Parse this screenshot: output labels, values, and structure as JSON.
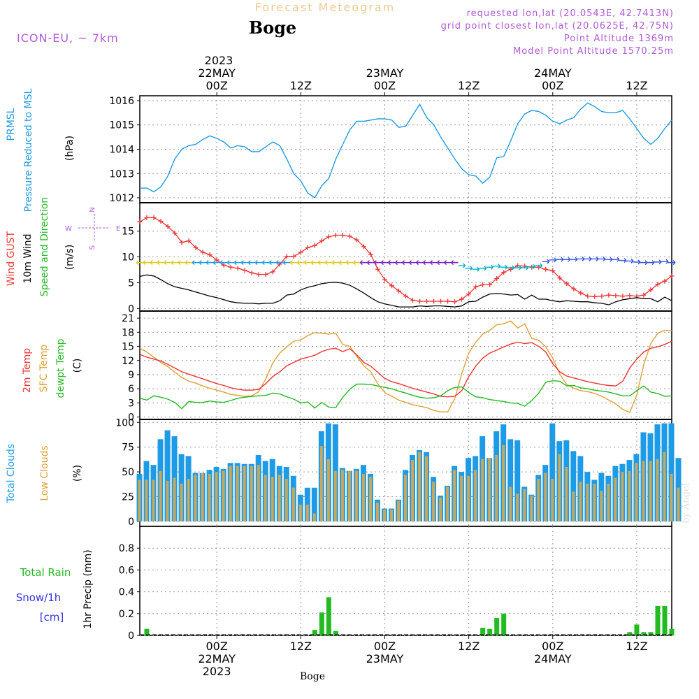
{
  "header": {
    "forecast_title": "Forecast Meteogram",
    "location": "Boge",
    "model": "ICON-EU, ~ 7km",
    "requested": "requested lon,lat (20.0543E, 42.7413N)",
    "grid_point": "grid point closest lon,lat (20.0625E, 42.75N)",
    "point_altitude": "Point Altitude 1369m",
    "model_altitude": "Model Point Altitude 1570.25m",
    "footer_location": "Boge",
    "watermark": "by Angel"
  },
  "colors": {
    "pressure": "#1e9be6",
    "gust": "#ee3333",
    "wind10m": "#000000",
    "temp2m": "#ee3333",
    "sfc_temp": "#dda030",
    "dewpt": "#22bb22",
    "total_cloud": "#1e9be6",
    "low_cloud": "#c8a85a",
    "rain": "#22bb22",
    "snow": "#3333dd",
    "meta_text": "#b05ad8",
    "title_text": "#f0c890"
  },
  "time_axis": {
    "top_year": "2023",
    "top_labels": [
      {
        "t": 0,
        "lines": [
          "22MAY",
          "00Z"
        ]
      },
      {
        "t": 12,
        "lines": [
          "12Z"
        ]
      },
      {
        "t": 24,
        "lines": [
          "23MAY",
          "00Z"
        ]
      },
      {
        "t": 36,
        "lines": [
          "12Z"
        ]
      },
      {
        "t": 48,
        "lines": [
          "24MAY",
          "00Z"
        ]
      },
      {
        "t": 60,
        "lines": [
          "12Z"
        ]
      }
    ],
    "bottom_labels": [
      {
        "t": 0,
        "lines": [
          "00Z",
          "22MAY",
          "2023"
        ]
      },
      {
        "t": 12,
        "lines": [
          "12Z"
        ]
      },
      {
        "t": 24,
        "lines": [
          "00Z",
          "23MAY"
        ]
      },
      {
        "t": 36,
        "lines": [
          "12Z"
        ]
      },
      {
        "t": 48,
        "lines": [
          "00Z",
          "24MAY"
        ]
      },
      {
        "t": 60,
        "lines": [
          "12Z"
        ]
      }
    ],
    "t_range_hours": [
      -11,
      65
    ]
  },
  "chart_data": [
    {
      "type": "line",
      "title": "PRMSL Pressure Reduced to MSL",
      "ylabel_lines": [
        "PRMSL",
        "Pressure Reduced to MSL"
      ],
      "unit": "(hPa)",
      "ylim": [
        1011.8,
        1016.2
      ],
      "yticks": [
        1012,
        1013,
        1014,
        1015,
        1016
      ],
      "series": [
        {
          "name": "Pressure",
          "values": [
            1012.4,
            1012.4,
            1012.25,
            1012.45,
            1012.9,
            1013.6,
            1014.0,
            1014.15,
            1014.2,
            1014.4,
            1014.55,
            1014.45,
            1014.3,
            1014.05,
            1014.15,
            1014.1,
            1013.9,
            1013.9,
            1014.1,
            1014.3,
            1014.15,
            1013.6,
            1013.0,
            1012.7,
            1012.2,
            1012.0,
            1012.5,
            1012.8,
            1013.6,
            1014.2,
            1014.8,
            1015.15,
            1015.15,
            1015.2,
            1015.25,
            1015.25,
            1015.2,
            1014.9,
            1014.95,
            1015.4,
            1015.85,
            1015.3,
            1015.0,
            1014.5,
            1014.05,
            1013.6,
            1013.2,
            1012.95,
            1012.9,
            1012.6,
            1012.85,
            1013.65,
            1013.7,
            1014.35,
            1015.05,
            1015.45,
            1015.6,
            1015.55,
            1015.4,
            1015.15,
            1015.05,
            1015.2,
            1015.3,
            1015.65,
            1015.9,
            1015.75,
            1015.55,
            1015.5,
            1015.5,
            1015.6,
            1015.25,
            1014.85,
            1014.45,
            1014.2,
            1014.45,
            1014.85,
            1015.2
          ]
        }
      ]
    },
    {
      "type": "line",
      "title": "Wind GUST / 10m Wind Speed and Direction",
      "ylabel_lines": [
        "Wind GUST",
        "10m Wind",
        "Speed and Direction"
      ],
      "unit": "(m/s)",
      "compass": [
        "N",
        "E",
        "S",
        "W"
      ],
      "ylim": [
        -0.5,
        20.5
      ],
      "yticks": [
        0,
        5,
        10,
        15
      ],
      "series": [
        {
          "name": "Wind GUST",
          "values": [
            16.8,
            17.6,
            17.6,
            16.9,
            15.9,
            14.6,
            12.8,
            13.1,
            11.8,
            10.9,
            10.4,
            9.4,
            8.4,
            8.0,
            7.8,
            7.4,
            6.9,
            6.6,
            6.6,
            7.1,
            8.6,
            10.1,
            10.1,
            10.9,
            11.8,
            12.2,
            13.1,
            13.9,
            14.2,
            14.2,
            14.0,
            13.3,
            12.0,
            10.5,
            7.6,
            5.6,
            4.4,
            3.4,
            2.4,
            1.6,
            1.4,
            1.4,
            1.4,
            1.4,
            1.4,
            1.3,
            1.8,
            2.8,
            4.2,
            4.6,
            4.6,
            5.8,
            7.0,
            7.6,
            8.3,
            8.2,
            8.0,
            8.0,
            7.6,
            7.3,
            5.9,
            4.8,
            3.8,
            3.0,
            2.4,
            2.3,
            2.4,
            2.6,
            2.5,
            2.4,
            2.5,
            2.4,
            2.6,
            3.6,
            4.7,
            5.3,
            6.3
          ]
        },
        {
          "name": "10m Wind",
          "values": [
            6.2,
            6.5,
            6.3,
            5.6,
            4.8,
            4.2,
            3.9,
            3.6,
            3.2,
            2.8,
            2.4,
            2.1,
            1.7,
            1.3,
            1.1,
            1.0,
            1.0,
            0.9,
            1.0,
            1.0,
            1.5,
            2.6,
            2.8,
            3.6,
            4.1,
            4.4,
            4.8,
            5.0,
            5.1,
            4.9,
            4.5,
            3.8,
            3.0,
            2.1,
            1.3,
            0.9,
            0.6,
            0.3,
            0.3,
            0.3,
            0.5,
            0.4,
            0.5,
            0.5,
            0.4,
            0.3,
            0.5,
            1.3,
            1.4,
            2.2,
            2.8,
            2.9,
            2.8,
            2.6,
            2.7,
            1.8,
            2.6,
            1.8,
            1.8,
            1.5,
            1.3,
            1.5,
            1.4,
            1.3,
            1.3,
            1.1,
            1.0,
            0.7,
            1.3,
            1.7,
            1.9,
            2.1,
            1.9,
            1.9,
            1.3,
            2.2,
            1.5
          ]
        },
        {
          "name": "Direction barbs (speed)",
          "values": [
            8.9,
            8.9,
            8.9,
            8.9,
            8.9,
            8.9,
            8.9,
            8.9,
            8.9,
            8.9,
            8.9,
            8.9,
            8.9,
            8.9,
            8.9,
            8.9,
            8.9,
            8.9,
            8.9,
            8.9,
            8.9,
            8.9,
            8.9,
            8.9,
            8.9,
            8.9,
            8.9,
            8.9,
            8.9,
            8.9,
            8.9,
            8.9,
            8.9,
            8.9,
            8.9,
            8.9,
            8.9,
            8.9,
            8.9,
            8.9,
            8.9,
            8.9,
            8.9,
            8.9,
            8.9,
            8.9,
            8.3,
            7.8,
            7.6,
            7.8,
            8.0,
            8.2,
            8.0,
            7.9,
            7.9,
            7.9,
            8.1,
            8.3,
            9.1,
            9.4,
            9.5,
            9.5,
            9.5,
            9.6,
            9.6,
            9.6,
            9.6,
            9.5,
            9.5,
            9.3,
            9.2,
            9.0,
            8.9,
            8.9,
            9.0,
            9.1,
            8.9
          ]
        }
      ]
    },
    {
      "type": "line",
      "title": "2m Temp / SFC Temp / dewpt Temp",
      "ylabel_lines": [
        "2m Temp",
        "SFC Temp",
        "dewpt Temp"
      ],
      "unit": "(C)",
      "ylim": [
        -0.5,
        22.5
      ],
      "yticks": [
        0,
        3,
        6,
        9,
        12,
        15,
        18,
        21
      ],
      "series": [
        {
          "name": "2m Temp",
          "values": [
            13.3,
            12.7,
            12.3,
            11.9,
            11.2,
            10.4,
            9.6,
            9.1,
            8.6,
            8.1,
            7.6,
            7.1,
            6.7,
            6.2,
            5.9,
            5.7,
            5.7,
            5.9,
            7.1,
            8.6,
            9.6,
            10.9,
            11.6,
            12.3,
            12.7,
            13.1,
            13.9,
            14.4,
            14.6,
            13.9,
            14.5,
            13.2,
            11.6,
            10.8,
            9.5,
            8.2,
            7.5,
            7.1,
            6.6,
            6.1,
            5.7,
            5.3,
            4.9,
            4.4,
            4.3,
            4.4,
            5.6,
            8.6,
            10.8,
            12.5,
            13.6,
            14.2,
            14.9,
            15.5,
            15.9,
            15.6,
            15.8,
            15.0,
            13.8,
            11.3,
            9.6,
            8.7,
            8.3,
            7.9,
            7.5,
            7.2,
            6.9,
            6.7,
            6.6,
            7.6,
            10.4,
            12.3,
            13.8,
            14.6,
            14.9,
            15.4,
            16.1
          ]
        },
        {
          "name": "SFC Temp",
          "values": [
            14.6,
            13.8,
            12.7,
            11.6,
            10.7,
            9.5,
            8.4,
            7.6,
            7.2,
            6.6,
            6.1,
            5.7,
            5.3,
            4.8,
            4.6,
            4.4,
            4.5,
            5.4,
            8.1,
            11.5,
            13.6,
            14.9,
            16.1,
            16.4,
            17.3,
            17.9,
            17.8,
            17.6,
            17.8,
            15.4,
            15.0,
            12.9,
            10.9,
            9.6,
            7.1,
            5.2,
            4.4,
            3.6,
            3.1,
            2.6,
            2.3,
            2.0,
            1.4,
            1.1,
            1.1,
            3.9,
            9.2,
            13.6,
            15.9,
            17.6,
            18.4,
            19.6,
            19.8,
            20.4,
            18.9,
            19.8,
            16.7,
            16.3,
            14.9,
            12.5,
            9.1,
            6.9,
            6.1,
            5.6,
            5.4,
            5.0,
            4.4,
            3.6,
            2.8,
            1.6,
            1.0,
            4.6,
            11.1,
            15.6,
            17.8,
            18.4,
            18.3
          ]
        },
        {
          "name": "dewpt Temp",
          "values": [
            4.0,
            3.6,
            4.5,
            4.2,
            3.8,
            3.1,
            1.8,
            3.3,
            3.1,
            3.1,
            3.4,
            3.2,
            3.1,
            3.5,
            4.0,
            4.2,
            4.4,
            4.5,
            4.6,
            5.1,
            4.9,
            4.3,
            3.8,
            3.0,
            3.2,
            1.9,
            3.1,
            2.1,
            2.0,
            4.2,
            5.9,
            7.0,
            7.0,
            6.9,
            6.6,
            6.3,
            6.0,
            5.5,
            5.1,
            4.6,
            4.2,
            4.0,
            4.1,
            4.5,
            5.6,
            6.3,
            6.4,
            5.2,
            4.3,
            4.1,
            3.7,
            3.5,
            3.3,
            3.0,
            2.9,
            2.3,
            3.5,
            5.1,
            7.4,
            7.7,
            7.6,
            6.6,
            6.7,
            6.2,
            6.0,
            5.7,
            5.5,
            5.3,
            4.9,
            4.5,
            4.5,
            5.6,
            6.6,
            5.3,
            5.0,
            4.4,
            4.5
          ]
        }
      ]
    },
    {
      "type": "bar",
      "title": "Total Clouds / Low Clouds",
      "ylabel_lines": [
        "Total Clouds",
        "Low Clouds"
      ],
      "unit": "(%)",
      "ylim": [
        -5,
        103
      ],
      "yticks": [
        0,
        25,
        50,
        75,
        100
      ],
      "series": [
        {
          "name": "Total Clouds",
          "values": [
            48,
            61,
            57,
            83,
            92,
            86,
            68,
            66,
            49,
            49,
            52,
            55,
            53,
            59,
            59,
            58,
            58,
            67,
            61,
            63,
            56,
            55,
            46,
            27,
            34,
            34,
            91,
            99,
            98,
            54,
            51,
            53,
            57,
            48,
            22,
            13,
            13,
            22,
            52,
            67,
            72,
            70,
            45,
            26,
            36,
            56,
            50,
            64,
            66,
            86,
            64,
            91,
            98,
            83,
            82,
            35,
            27,
            47,
            57,
            99,
            81,
            82,
            71,
            66,
            50,
            42,
            49,
            46,
            56,
            58,
            62,
            68,
            90,
            89,
            98,
            99,
            99,
            64
          ]
        },
        {
          "name": "Low Clouds",
          "values": [
            42,
            42,
            42,
            51,
            41,
            44,
            38,
            43,
            47,
            49,
            48,
            50,
            51,
            56,
            56,
            56,
            56,
            57,
            47,
            45,
            47,
            43,
            34,
            17,
            17,
            8,
            76,
            63,
            51,
            52,
            51,
            51,
            48,
            45,
            19,
            12,
            12,
            21,
            47,
            62,
            70,
            66,
            40,
            24,
            35,
            52,
            46,
            46,
            52,
            63,
            64,
            67,
            77,
            35,
            28,
            33,
            26,
            43,
            49,
            43,
            68,
            55,
            30,
            40,
            38,
            38,
            31,
            38,
            44,
            50,
            51,
            59,
            61,
            61,
            63,
            70,
            48,
            34
          ]
        }
      ]
    },
    {
      "type": "bar",
      "title": "1hr Precip",
      "ylabel_lines": [
        "1hr Precip (mm)"
      ],
      "legend": [
        "Total  Rain",
        "Snow/1h",
        "[cm]"
      ],
      "ylim": [
        0,
        1.0
      ],
      "yticks": [
        0,
        0.2,
        0.4,
        0.6,
        0.8
      ],
      "series": [
        {
          "name": "Total Rain",
          "values": [
            0,
            0.06,
            0,
            0,
            0,
            0,
            0,
            0,
            0,
            0,
            0,
            0,
            0,
            0,
            0,
            0,
            0,
            0,
            0,
            0,
            0,
            0,
            0,
            0,
            0,
            0.05,
            0.21,
            0.35,
            0.04,
            0,
            0,
            0,
            0,
            0,
            0,
            0,
            0,
            0,
            0,
            0,
            0,
            0,
            0,
            0,
            0,
            0,
            0,
            0,
            0,
            0.07,
            0.06,
            0.16,
            0.2,
            0,
            0,
            0,
            0,
            0,
            0,
            0,
            0,
            0,
            0,
            0,
            0,
            0,
            0,
            0,
            0,
            0,
            0.03,
            0.1,
            0.03,
            0.03,
            0.27,
            0.27,
            0.06
          ]
        }
      ]
    }
  ]
}
